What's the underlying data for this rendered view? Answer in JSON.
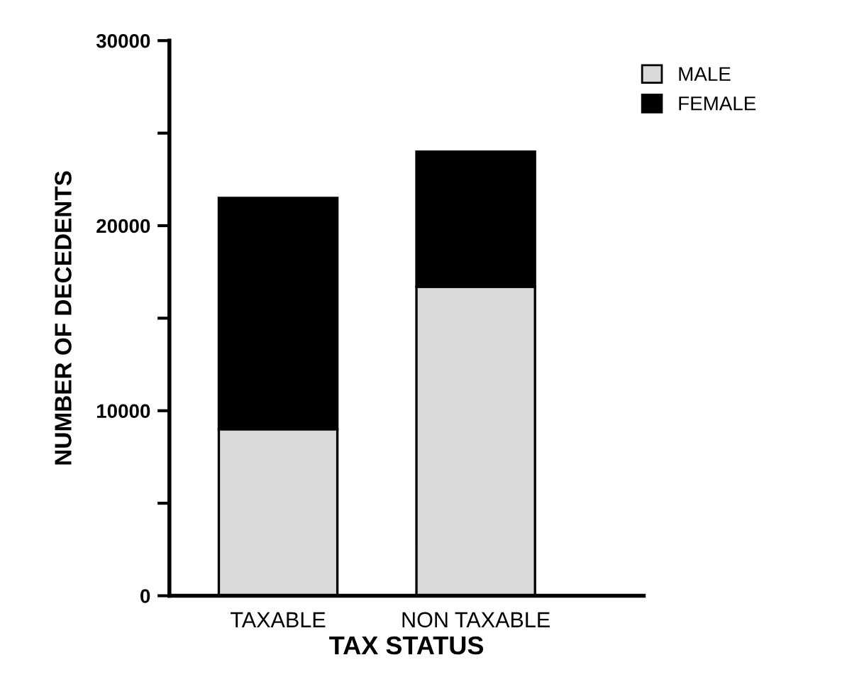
{
  "chart_data": {
    "type": "bar",
    "stacked": true,
    "xlabel": "TAX STATUS",
    "ylabel": "NUMBER OF DECEDENTS",
    "categories": [
      "TAXABLE",
      "NON TAXABLE"
    ],
    "series": [
      {
        "name": "MALE",
        "color": "#d9d9d9",
        "values": [
          9000,
          16700
        ]
      },
      {
        "name": "FEMALE",
        "color": "#000000",
        "values": [
          12500,
          7300
        ]
      }
    ],
    "ylim": [
      0,
      30000
    ],
    "yticks": [
      0,
      {
        "value": 5000,
        "label": null
      },
      10000,
      {
        "value": 15000,
        "label": null
      },
      20000,
      {
        "value": 25000,
        "label": null
      },
      30000
    ],
    "grid": false,
    "legend": "top right"
  }
}
